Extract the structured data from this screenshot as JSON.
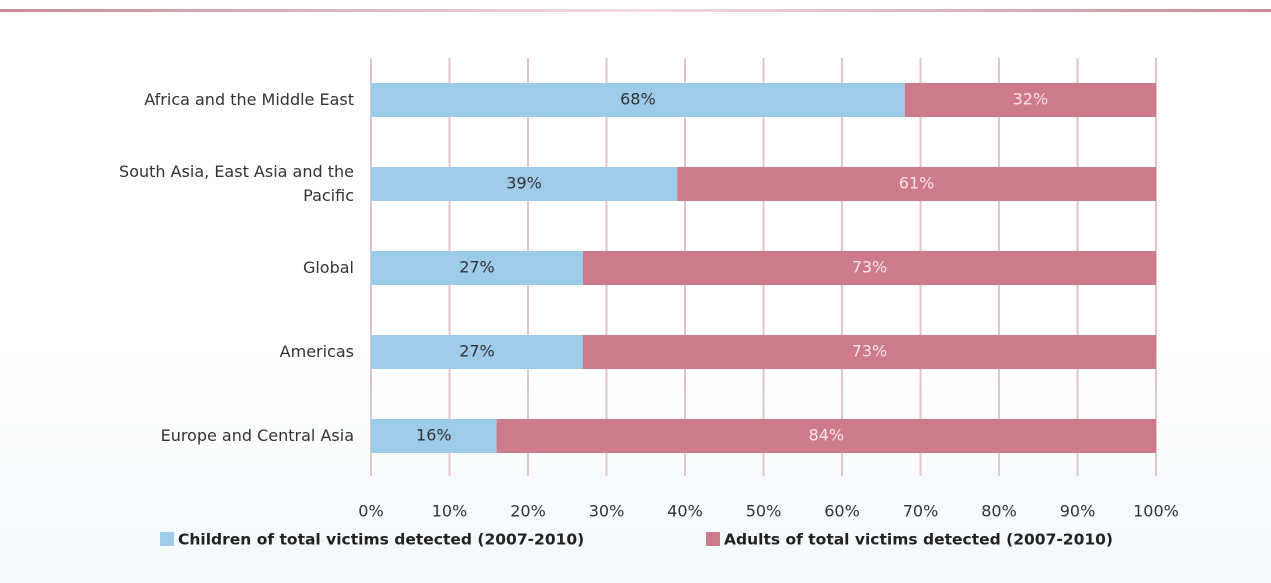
{
  "chart_data": {
    "type": "stacked_bar_horizontal",
    "categories": [
      "Africa and the Middle East",
      "South Asia, East Asia and the Pacific",
      "Global",
      "Americas",
      "Europe and Central Asia"
    ],
    "series": [
      {
        "name": "Children of total victims detected (2007-2010)",
        "color": "#9dcbea",
        "values": [
          68,
          39,
          27,
          27,
          16
        ],
        "value_labels": [
          "68%",
          "39%",
          "27%",
          "27%",
          "16%"
        ]
      },
      {
        "name": "Adults of total victims detected (2007-2010)",
        "color": "#cf7a8a",
        "values": [
          32,
          61,
          73,
          73,
          84
        ],
        "value_labels": [
          "32%",
          "61%",
          "73%",
          "73%",
          "84%"
        ]
      }
    ],
    "xlim": [
      0,
      100
    ],
    "xticks": [
      {
        "value": 0,
        "label": "0%"
      },
      {
        "value": 10,
        "label": "10%"
      },
      {
        "value": 20,
        "label": "20%"
      },
      {
        "value": 30,
        "label": "30%"
      },
      {
        "value": 40,
        "label": "40%"
      },
      {
        "value": 50,
        "label": "50%"
      },
      {
        "value": 60,
        "label": "60%"
      },
      {
        "value": 70,
        "label": "70%"
      },
      {
        "value": 80,
        "label": "80%"
      },
      {
        "value": 90,
        "label": "90%"
      },
      {
        "value": 100,
        "label": "100%"
      }
    ],
    "grid": true
  }
}
